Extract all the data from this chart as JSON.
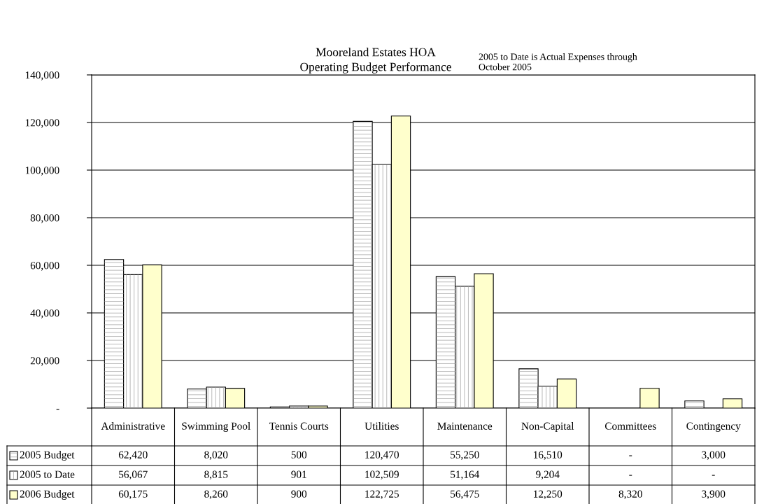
{
  "chart_data": {
    "type": "bar",
    "title": "Mooreland Estates HOA",
    "subtitle": "Operating Budget Performance",
    "annotations": [
      "2005 to Date is Actual Expenses through\nOctober 2005"
    ],
    "categories": [
      "Administrative",
      "Swimming Pool",
      "Tennis Courts",
      "Utilities",
      "Maintenance",
      "Non-Capital",
      "Committees",
      "Contingency"
    ],
    "series": [
      {
        "name": "2005 Budget",
        "color": "#ffffff",
        "values": [
          62420,
          8020,
          500,
          120470,
          55250,
          16510,
          0,
          3000
        ],
        "value_labels": [
          "62,420",
          "8,020",
          "500",
          "120,470",
          "55,250",
          "16,510",
          "-",
          "3,000"
        ]
      },
      {
        "name": "2005 to Date",
        "color": "#ffffff",
        "values": [
          56067,
          8815,
          901,
          102509,
          51164,
          9204,
          0,
          0
        ],
        "value_labels": [
          "56,067",
          "8,815",
          "901",
          "102,509",
          "51,164",
          "9,204",
          "-",
          "-"
        ]
      },
      {
        "name": "2006 Budget",
        "color": "#ffffcc",
        "values": [
          60175,
          8260,
          900,
          122725,
          56475,
          12250,
          8320,
          3900
        ],
        "value_labels": [
          "60,175",
          "8,260",
          "900",
          "122,725",
          "56,475",
          "12,250",
          "8,320",
          "3,900"
        ]
      }
    ],
    "ylim": [
      0,
      140000
    ],
    "yticks": [
      {
        "value": 0,
        "label": "-"
      },
      {
        "value": 20000,
        "label": "20,000"
      },
      {
        "value": 40000,
        "label": "40,000"
      },
      {
        "value": 60000,
        "label": "60,000"
      },
      {
        "value": 80000,
        "label": "80,000"
      },
      {
        "value": 100000,
        "label": "100,000"
      },
      {
        "value": 120000,
        "label": "120,000"
      },
      {
        "value": 140000,
        "label": "140,000"
      }
    ],
    "grid": "y",
    "legend": "bottom left"
  }
}
